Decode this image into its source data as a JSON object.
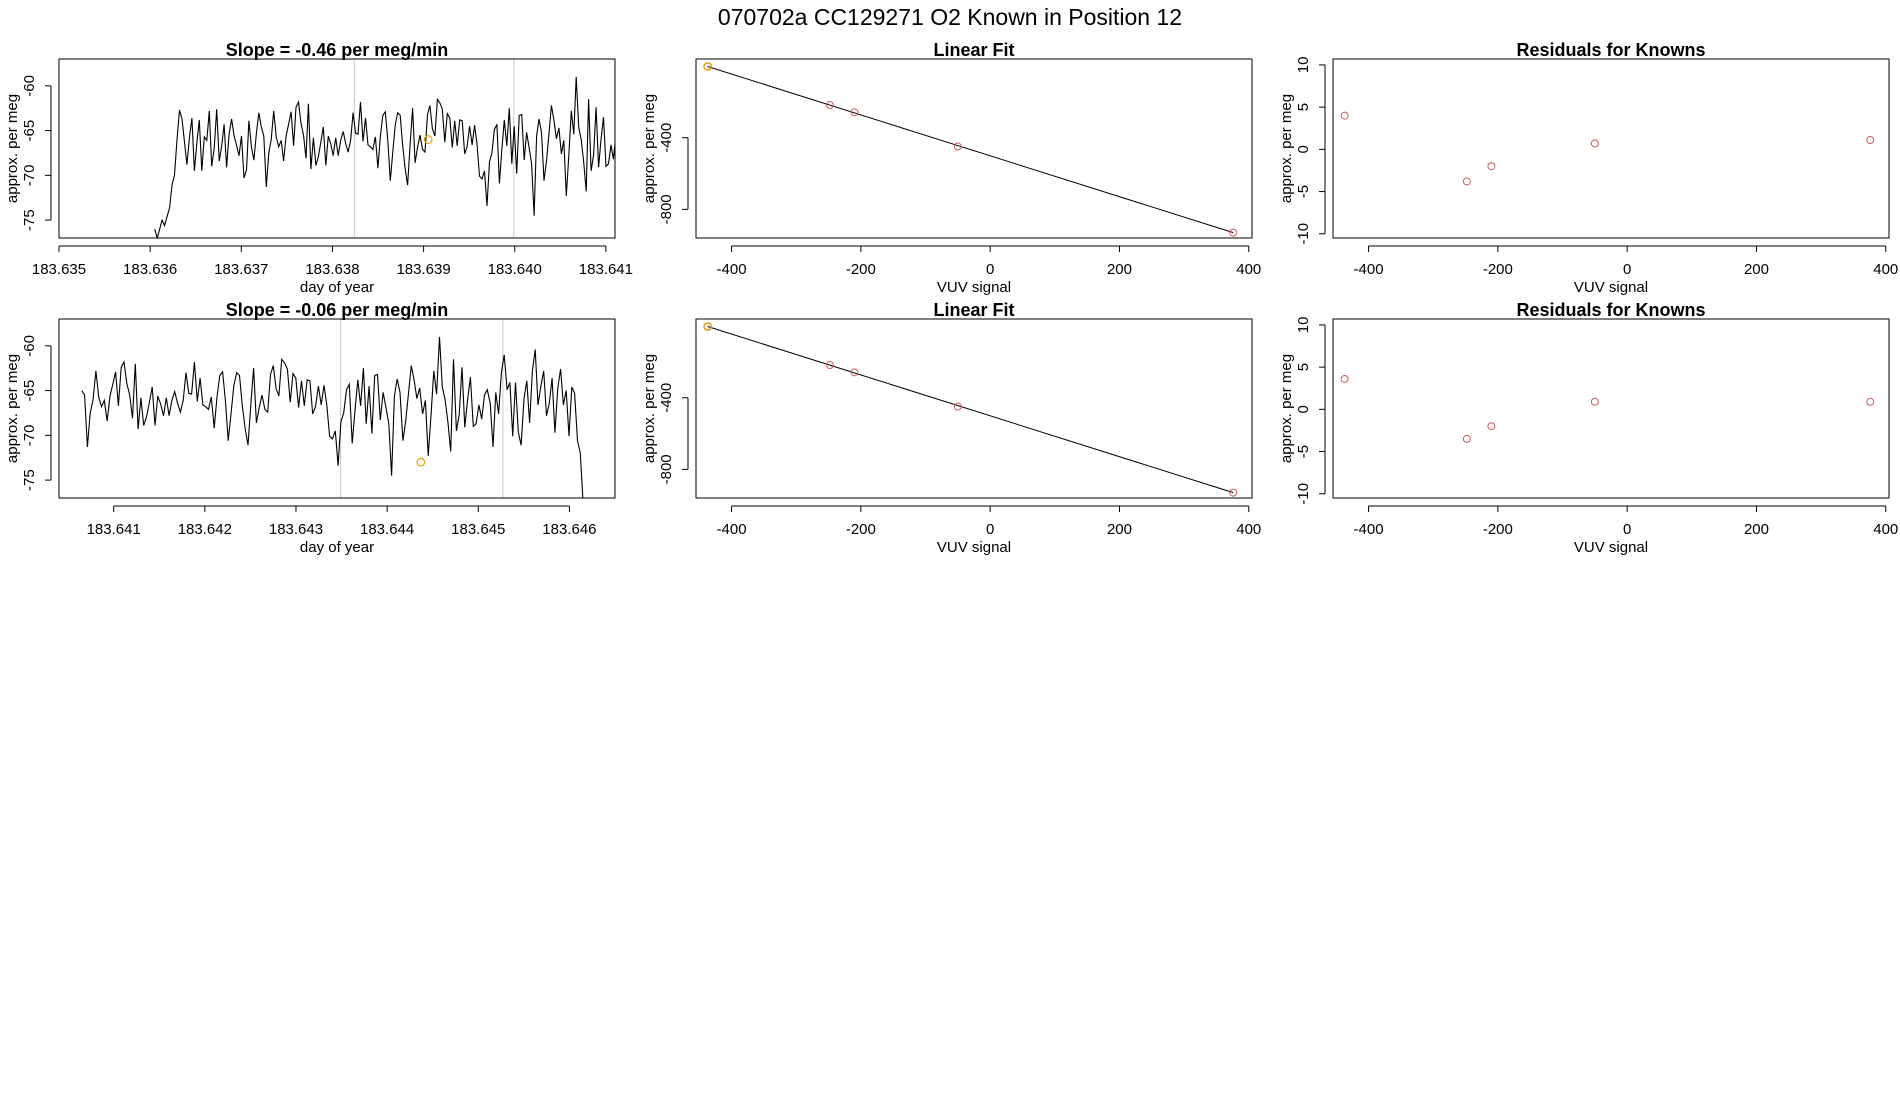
{
  "main_title": "070702a      CC129271   O2 Known in Position  12",
  "colors": {
    "line": "#000000",
    "known_point": "#cd5c5c",
    "highlight_point": "#e69f00",
    "ref_line": "#c8c8c8"
  },
  "chart_data": [
    {
      "type": "line",
      "title": "Slope =  -0.46  per meg/min",
      "xlabel": "day of year",
      "ylabel": "approx. per meg",
      "xlim": [
        183.635,
        183.6411
      ],
      "ylim": [
        -77,
        -57
      ],
      "x_ticks": [
        183.635,
        183.636,
        183.637,
        183.638,
        183.639,
        183.64,
        183.641
      ],
      "x_tick_labels": [
        "183.635",
        "183.636",
        "183.637",
        "183.638",
        "183.639",
        "183.640",
        "183.641"
      ],
      "y_ticks": [
        -75,
        -70,
        -65,
        -60
      ],
      "y_tick_labels": [
        "-75",
        "-70",
        "-65",
        "-60"
      ],
      "ref_lines_x": [
        183.63824,
        183.63999
      ],
      "series": [
        {
          "x_start": 183.63605,
          "x_end": 183.64111,
          "values": [
            -76,
            -77,
            -76,
            -75,
            -75.6,
            -74.6,
            -73.6,
            -71,
            -70,
            -66,
            -62.7,
            -63.7,
            -66.3,
            -68.8,
            -65.8,
            -63.6,
            -69.5,
            -66.3,
            -63.8,
            -69.5,
            -65.7,
            -66.1,
            -62.8,
            -69,
            -67,
            -62.6,
            -68.4,
            -66.7,
            -64.3,
            -69.1,
            -65.4,
            -63.7,
            -65.6,
            -66.6,
            -67.8,
            -65.6,
            -70.3,
            -69.4,
            -63.9,
            -66.8,
            -68.3,
            -65.3,
            -63,
            -64.6,
            -65.6,
            -71.3,
            -67.5,
            -66,
            -62.8,
            -65.7,
            -66.8,
            -66.1,
            -68.4,
            -65.6,
            -64.3,
            -62.9,
            -66.7,
            -62.4,
            -61.8,
            -64.2,
            -65.5,
            -68.1,
            -62,
            -69.3,
            -65.8,
            -68.9,
            -67.9,
            -66.3,
            -64.6,
            -68.9,
            -65.6,
            -66.5,
            -67.8,
            -65.8,
            -67.8,
            -66.1,
            -65.1,
            -66.4,
            -67.4,
            -66.1,
            -63,
            -65.3,
            -65.4,
            -61.8,
            -66.2,
            -63.6,
            -66.6,
            -66.8,
            -67.1,
            -65.7,
            -69.2,
            -65.7,
            -63.3,
            -62.9,
            -66.1,
            -70.6,
            -67.5,
            -64.4,
            -63,
            -63.3,
            -66.7,
            -69.2,
            -71.1,
            -66.6,
            -62.5,
            -68.6,
            -66.9,
            -65.5,
            -67.1,
            -67.4,
            -63.2,
            -62.2,
            -64.8,
            -65.6,
            -61.5,
            -61.9,
            -62.6,
            -66.3,
            -63.1,
            -63.6,
            -66.9,
            -63.9,
            -66.7,
            -63.8,
            -63.9,
            -67.6,
            -66.8,
            -64.5,
            -66.6,
            -64.4,
            -66.6,
            -70.1,
            -70.4,
            -69.5,
            -73.4,
            -68.5,
            -67.5,
            -64.9,
            -64.3,
            -70.9,
            -67.2,
            -63.8,
            -66.7,
            -62.5,
            -68.7,
            -64.5,
            -69.8,
            -63.3,
            -63.2,
            -68.3,
            -65.2,
            -66.9,
            -68.7,
            -74.5,
            -65.6,
            -63.7,
            -65.2,
            -70.6,
            -68.4,
            -65.3,
            -62.2,
            -63.8,
            -65.9,
            -64.7,
            -67.6,
            -66.1,
            -72.3,
            -67.8,
            -62.8,
            -65.4,
            -59,
            -64.6,
            -66,
            -68.5,
            -71.8,
            -61.5,
            -69.5,
            -67.7,
            -62.4,
            -69.1,
            -66,
            -63.5,
            -69,
            -68.7,
            -66.6,
            -68.2,
            -65.5
          ]
        }
      ],
      "highlight_points": [
        {
          "x": 183.63905,
          "y": -66
        }
      ]
    },
    {
      "type": "scatter",
      "title": "Linear Fit",
      "xlabel": "VUV signal",
      "ylabel": "approx. per meg",
      "xlim": [
        -455,
        405
      ],
      "ylim": [
        -960,
        40
      ],
      "x_ticks": [
        -400,
        -200,
        0,
        200,
        400
      ],
      "x_tick_labels": [
        "-400",
        "-200",
        "0",
        "200",
        "400"
      ],
      "y_ticks": [
        -800,
        -400
      ],
      "y_tick_labels": [
        "-800",
        "-400"
      ],
      "points": [
        {
          "x": -437,
          "y": -2
        },
        {
          "x": -248,
          "y": -217
        },
        {
          "x": -210,
          "y": -258
        },
        {
          "x": -50,
          "y": -449
        },
        {
          "x": 376,
          "y": -930
        }
      ],
      "highlight_points": [
        {
          "x": -437,
          "y": -2
        }
      ],
      "fit_line": {
        "x": [
          -437,
          376
        ],
        "y": [
          -2,
          -930
        ]
      }
    },
    {
      "type": "scatter",
      "title": "Residuals for Knowns",
      "xlabel": "VUV signal",
      "ylabel": "approx. per meg",
      "xlim": [
        -455,
        405
      ],
      "ylim": [
        -10.5,
        10.7
      ],
      "x_ticks": [
        -400,
        -200,
        0,
        200,
        400
      ],
      "x_tick_labels": [
        "-400",
        "-200",
        "0",
        "200",
        "400"
      ],
      "y_ticks": [
        -10,
        -5,
        0,
        5,
        10
      ],
      "y_tick_labels": [
        "-10",
        "-5",
        "0",
        "5",
        "10"
      ],
      "points": [
        {
          "x": -437,
          "y": 4
        },
        {
          "x": -248,
          "y": -3.8
        },
        {
          "x": -210,
          "y": -2
        },
        {
          "x": -50,
          "y": 0.7
        },
        {
          "x": 376,
          "y": 1.1
        }
      ]
    },
    {
      "type": "line",
      "title": "Slope =  -0.06  per meg/min",
      "xlabel": "day of year",
      "ylabel": "approx. per meg",
      "xlim": [
        183.6404,
        183.6465
      ],
      "ylim": [
        -77,
        -57
      ],
      "x_ticks": [
        183.641,
        183.642,
        183.643,
        183.644,
        183.645,
        183.646
      ],
      "x_tick_labels": [
        "183.641",
        "183.642",
        "183.643",
        "183.644",
        "183.645",
        "183.646"
      ],
      "y_ticks": [
        -75,
        -70,
        -65,
        -60
      ],
      "y_tick_labels": [
        "-75",
        "-70",
        "-65",
        "-60"
      ],
      "ref_lines_x": [
        183.64349,
        183.64527
      ],
      "series": [
        {
          "x_start": 183.64065,
          "x_end": 183.64615,
          "values": [
            -65,
            -65.5,
            -71.3,
            -67.5,
            -66,
            -62.8,
            -65.7,
            -66.8,
            -66.1,
            -68.4,
            -65.6,
            -64.3,
            -62.9,
            -66.7,
            -62.4,
            -61.8,
            -64.2,
            -65.5,
            -68.1,
            -62,
            -69.3,
            -65.8,
            -68.9,
            -67.9,
            -66.3,
            -64.6,
            -68.9,
            -65.6,
            -66.5,
            -67.8,
            -65.8,
            -67.8,
            -66.1,
            -65.1,
            -66.4,
            -67.4,
            -66.1,
            -63,
            -65.3,
            -65.4,
            -61.8,
            -66.2,
            -63.6,
            -66.6,
            -66.8,
            -67.1,
            -65.7,
            -69.2,
            -65.7,
            -63.3,
            -62.9,
            -66.1,
            -70.6,
            -67.5,
            -64.4,
            -63,
            -63.3,
            -66.7,
            -69.2,
            -71.1,
            -66.6,
            -62.5,
            -68.6,
            -66.9,
            -65.5,
            -67.1,
            -67.4,
            -63.2,
            -62.2,
            -64.8,
            -65.6,
            -61.5,
            -61.9,
            -62.6,
            -66.3,
            -63.1,
            -63.6,
            -66.9,
            -63.9,
            -66.7,
            -63.8,
            -63.9,
            -67.6,
            -66.8,
            -64.5,
            -66.6,
            -64.4,
            -66.6,
            -70.1,
            -70.4,
            -69.5,
            -73.4,
            -68.5,
            -67.5,
            -64.9,
            -64.3,
            -70.9,
            -67.2,
            -63.8,
            -66.7,
            -62.5,
            -68.7,
            -64.5,
            -69.8,
            -63.3,
            -63.2,
            -68.3,
            -65.2,
            -66.9,
            -68.7,
            -74.5,
            -65.6,
            -63.7,
            -65.2,
            -70.6,
            -68.4,
            -65.3,
            -62.2,
            -63.8,
            -65.9,
            -64.7,
            -67.6,
            -66.1,
            -72.3,
            -67.8,
            -62.8,
            -65.4,
            -59,
            -64.6,
            -66,
            -68.5,
            -71.8,
            -61.5,
            -69.5,
            -67.7,
            -62.4,
            -69.1,
            -66,
            -63.5,
            -69,
            -68.7,
            -66.6,
            -68.2,
            -65.5,
            -64.9,
            -66.4,
            -71.3,
            -65.2,
            -67.6,
            -63,
            -61,
            -64.9,
            -64.1,
            -70.1,
            -64.1,
            -69.6,
            -71.1,
            -65.9,
            -63.9,
            -68.6,
            -62.8,
            -60.4,
            -66.6,
            -64.5,
            -62.8,
            -67.8,
            -66.4,
            -63.6,
            -69.7,
            -64.7,
            -62.6,
            -66.6,
            -65,
            -70.1,
            -64.6,
            -65.3,
            -70.6,
            -72,
            -77.5
          ]
        }
      ],
      "highlight_points": [
        {
          "x": 183.64437,
          "y": -73
        }
      ]
    },
    {
      "type": "scatter",
      "title": "Linear Fit",
      "xlabel": "VUV signal",
      "ylabel": "approx. per meg",
      "xlim": [
        -455,
        405
      ],
      "ylim": [
        -960,
        40
      ],
      "x_ticks": [
        -400,
        -200,
        0,
        200,
        400
      ],
      "x_tick_labels": [
        "-400",
        "-200",
        "0",
        "200",
        "400"
      ],
      "y_ticks": [
        -800,
        -400
      ],
      "y_tick_labels": [
        "-800",
        "-400"
      ],
      "points": [
        {
          "x": -437,
          "y": -2
        },
        {
          "x": -248,
          "y": -217
        },
        {
          "x": -210,
          "y": -258
        },
        {
          "x": -50,
          "y": -449
        },
        {
          "x": 376,
          "y": -930
        }
      ],
      "highlight_points": [
        {
          "x": -437,
          "y": -2
        }
      ],
      "fit_line": {
        "x": [
          -437,
          376
        ],
        "y": [
          -2,
          -930
        ]
      }
    },
    {
      "type": "scatter",
      "title": "Residuals for Knowns",
      "xlabel": "VUV signal",
      "ylabel": "approx. per meg",
      "xlim": [
        -455,
        405
      ],
      "ylim": [
        -10.5,
        10.7
      ],
      "x_ticks": [
        -400,
        -200,
        0,
        200,
        400
      ],
      "x_tick_labels": [
        "-400",
        "-200",
        "0",
        "200",
        "400"
      ],
      "y_ticks": [
        -10,
        -5,
        0,
        5,
        10
      ],
      "y_tick_labels": [
        "-10",
        "-5",
        "0",
        "5",
        "10"
      ],
      "points": [
        {
          "x": -437,
          "y": 3.6
        },
        {
          "x": -248,
          "y": -3.5
        },
        {
          "x": -210,
          "y": -2
        },
        {
          "x": -50,
          "y": 0.9
        },
        {
          "x": 376,
          "y": 0.9
        }
      ]
    }
  ]
}
